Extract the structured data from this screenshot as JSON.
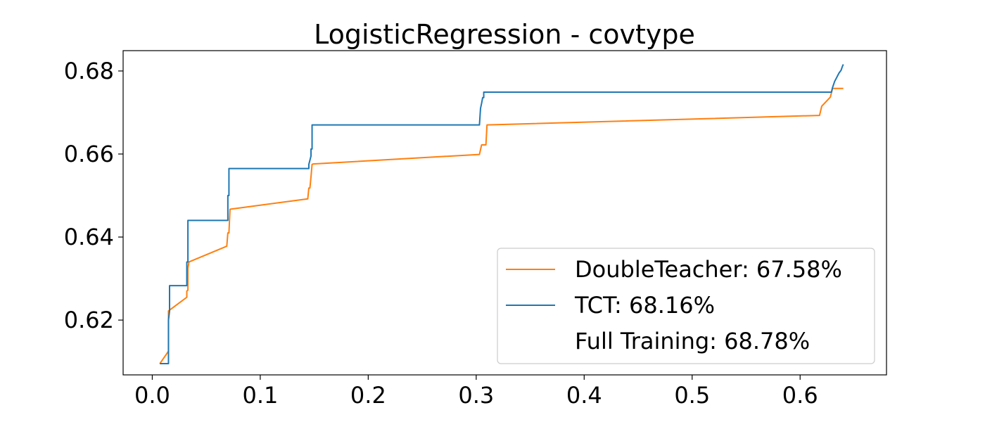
{
  "chart_data": {
    "type": "line",
    "title": "LogisticRegression - covtype",
    "xlabel": "",
    "ylabel": "",
    "xlim": [
      -0.027,
      0.68
    ],
    "ylim": [
      0.6068,
      0.6849
    ],
    "xticks": [
      0.0,
      0.1,
      0.2,
      0.3,
      0.4,
      0.5,
      0.6
    ],
    "xtick_labels": [
      "0.0",
      "0.1",
      "0.2",
      "0.3",
      "0.4",
      "0.5",
      "0.6"
    ],
    "yticks": [
      0.62,
      0.64,
      0.66,
      0.68
    ],
    "ytick_labels": [
      "0.62",
      "0.64",
      "0.66",
      "0.68"
    ],
    "grid": false,
    "legend_position": "lower-right",
    "series": [
      {
        "name": "DoubleTeacher: 67.58%",
        "color": "#ff7f0e",
        "x": [
          0.007,
          0.015,
          0.015,
          0.032,
          0.032,
          0.033,
          0.033,
          0.034,
          0.069,
          0.07,
          0.071,
          0.072,
          0.144,
          0.145,
          0.146,
          0.147,
          0.148,
          0.149,
          0.303,
          0.305,
          0.306,
          0.309,
          0.31,
          0.618,
          0.62,
          0.628,
          0.63,
          0.64
        ],
        "y": [
          0.6095,
          0.6125,
          0.6222,
          0.6255,
          0.627,
          0.6272,
          0.6325,
          0.634,
          0.6378,
          0.641,
          0.641,
          0.6467,
          0.6492,
          0.6518,
          0.6518,
          0.6545,
          0.6575,
          0.6576,
          0.6599,
          0.6622,
          0.6622,
          0.6622,
          0.667,
          0.6693,
          0.6715,
          0.6737,
          0.6758,
          0.6758
        ]
      },
      {
        "name": "TCT: 68.16%",
        "color": "#1f77b4",
        "x": [
          0.007,
          0.015,
          0.015,
          0.016,
          0.016,
          0.032,
          0.032,
          0.033,
          0.033,
          0.07,
          0.07,
          0.071,
          0.071,
          0.145,
          0.145,
          0.147,
          0.147,
          0.148,
          0.148,
          0.303,
          0.304,
          0.305,
          0.306,
          0.307,
          0.307,
          0.629,
          0.63,
          0.632,
          0.634,
          0.636,
          0.638,
          0.639,
          0.64
        ],
        "y": [
          0.6095,
          0.6095,
          0.62,
          0.6222,
          0.6283,
          0.6283,
          0.634,
          0.634,
          0.644,
          0.644,
          0.65,
          0.65,
          0.6565,
          0.6565,
          0.6575,
          0.6595,
          0.6612,
          0.6612,
          0.667,
          0.667,
          0.671,
          0.6722,
          0.6736,
          0.6736,
          0.6749,
          0.6749,
          0.676,
          0.6775,
          0.6785,
          0.6795,
          0.6802,
          0.681,
          0.6816
        ]
      },
      {
        "name": "Full Training: 68.78%",
        "color": "#ffffff",
        "x": [],
        "y": []
      }
    ]
  }
}
